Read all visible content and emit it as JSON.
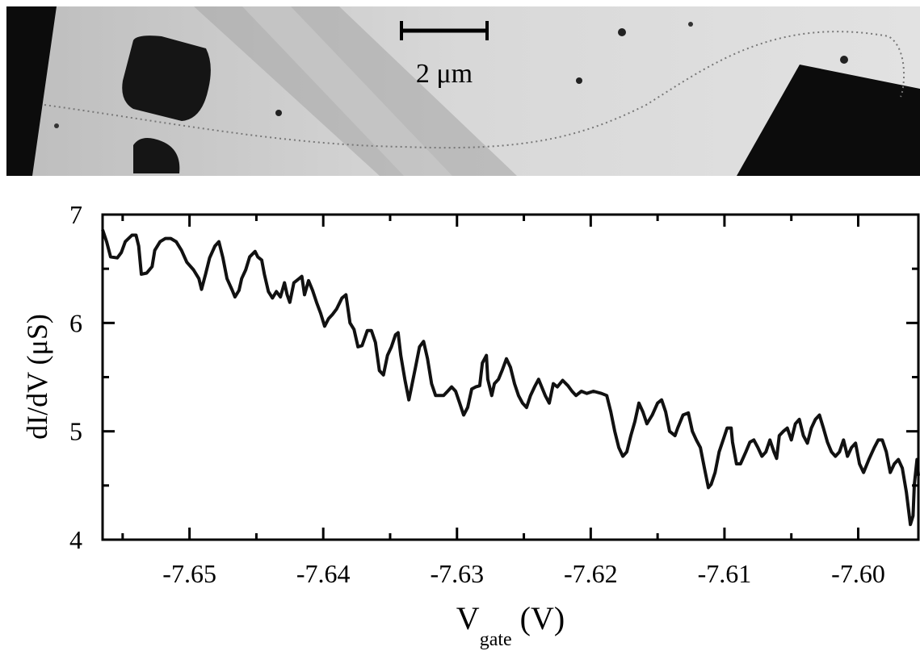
{
  "scale_bar_label": "2 μm",
  "chart_data": {
    "type": "line",
    "xlabel": {
      "main": "V",
      "sub": "gate",
      "unit": "(V)"
    },
    "ylabel": "dI/dV (μS)",
    "color": "#111111",
    "xlim": [
      -7.6565,
      -7.5955
    ],
    "ylim": [
      4,
      7
    ],
    "xticks": [
      -7.65,
      -7.64,
      -7.63,
      -7.62,
      -7.61,
      {
        "value": -7.6,
        "label": "-7.60"
      }
    ],
    "xminorticks": [
      -7.655,
      -7.645,
      -7.635,
      -7.625,
      -7.615,
      -7.605
    ],
    "yticks": [
      4,
      5,
      6,
      7
    ],
    "yminorticks": [
      4.5,
      5.5,
      6.5
    ],
    "x": [
      -7.6565,
      -7.6562,
      -7.6559,
      -7.6554,
      -7.6551,
      -7.6548,
      -7.6543,
      -7.654,
      -7.6538,
      -7.6536,
      -7.6532,
      -7.6528,
      -7.6526,
      -7.6522,
      -7.6518,
      -7.6514,
      -7.651,
      -7.6506,
      -7.6502,
      -7.6497,
      -7.6493,
      -7.6491,
      -7.6488,
      -7.6485,
      -7.6481,
      -7.6478,
      -7.6475,
      -7.6472,
      -7.6468,
      -7.6466,
      -7.6463,
      -7.6461,
      -7.6458,
      -7.6455,
      -7.6451,
      -7.6449,
      -7.6446,
      -7.6444,
      -7.6441,
      -7.6438,
      -7.6435,
      -7.6432,
      -7.6429,
      -7.6427,
      -7.6425,
      -7.6422,
      -7.6418,
      -7.6416,
      -7.6414,
      -7.6411,
      -7.6408,
      -7.6405,
      -7.6402,
      -7.6399,
      -7.6396,
      -7.6393,
      -7.639,
      -7.6386,
      -7.6383,
      -7.638,
      -7.6377,
      -7.6374,
      -7.6371,
      -7.6367,
      -7.6364,
      -7.6361,
      -7.6358,
      -7.6355,
      -7.6352,
      -7.6349,
      -7.6346,
      -7.6344,
      -7.6342,
      -7.6339,
      -7.6336,
      -7.6334,
      -7.6331,
      -7.6328,
      -7.6325,
      -7.6322,
      -7.6319,
      -7.6316,
      -7.6313,
      -7.631,
      -7.6307,
      -7.6304,
      -7.6301,
      -7.6298,
      -7.6295,
      -7.6292,
      -7.6289,
      -7.6286,
      -7.6283,
      -7.6281,
      -7.6278,
      -7.6277,
      -7.6274,
      -7.6272,
      -7.6269,
      -7.6266,
      -7.6263,
      -7.626,
      -7.6257,
      -7.6254,
      -7.6251,
      -7.6248,
      -7.6245,
      -7.6242,
      -7.6239,
      -7.6234,
      -7.6231,
      -7.6228,
      -7.6225,
      -7.6221,
      -7.6217,
      -7.6214,
      -7.6211,
      -7.6207,
      -7.6203,
      -7.6198,
      -7.6192,
      -7.6188,
      -7.6185,
      -7.6182,
      -7.6179,
      -7.6176,
      -7.6173,
      -7.617,
      -7.6167,
      -7.6164,
      -7.6161,
      -7.6158,
      -7.6154,
      -7.615,
      -7.6147,
      -7.6144,
      -7.6141,
      -7.6137,
      -7.6135,
      -7.6131,
      -7.6127,
      -7.6124,
      -7.6121,
      -7.6118,
      -7.6115,
      -7.6112,
      -7.611,
      -7.6107,
      -7.6104,
      -7.6101,
      -7.6098,
      -7.6095,
      -7.6094,
      -7.6091,
      -7.6088,
      -7.6084,
      -7.6081,
      -7.6078,
      -7.6075,
      -7.6072,
      -7.6069,
      -7.6066,
      -7.6063,
      -7.6061,
      -7.6059,
      -7.6056,
      -7.6053,
      -7.605,
      -7.6047,
      -7.6044,
      -7.6041,
      -7.6038,
      -7.6035,
      -7.6032,
      -7.6029,
      -7.6026,
      -7.6023,
      -7.602,
      -7.6017,
      -7.6014,
      -7.6011,
      -7.6008,
      -7.6005,
      -7.6002,
      -7.5999,
      -7.5996,
      -7.5992,
      -7.5988,
      -7.5985,
      -7.5982,
      -7.5979,
      -7.5976,
      -7.5973,
      -7.597,
      -7.5967,
      -7.5964,
      -7.5961,
      -7.5959,
      -7.5958,
      -7.5956,
      -7.5955
    ],
    "values": [
      6.86,
      6.75,
      6.61,
      6.6,
      6.65,
      6.75,
      6.81,
      6.81,
      6.71,
      6.45,
      6.46,
      6.52,
      6.67,
      6.75,
      6.78,
      6.78,
      6.75,
      6.67,
      6.56,
      6.49,
      6.41,
      6.31,
      6.45,
      6.6,
      6.71,
      6.75,
      6.6,
      6.41,
      6.3,
      6.24,
      6.3,
      6.41,
      6.49,
      6.61,
      6.66,
      6.61,
      6.58,
      6.45,
      6.29,
      6.23,
      6.29,
      6.24,
      6.37,
      6.26,
      6.19,
      6.37,
      6.41,
      6.43,
      6.26,
      6.39,
      6.3,
      6.19,
      6.09,
      5.97,
      6.04,
      6.08,
      6.13,
      6.23,
      6.26,
      6.0,
      5.94,
      5.78,
      5.79,
      5.93,
      5.93,
      5.82,
      5.56,
      5.52,
      5.7,
      5.78,
      5.89,
      5.91,
      5.7,
      5.48,
      5.29,
      5.41,
      5.59,
      5.78,
      5.83,
      5.67,
      5.44,
      5.33,
      5.33,
      5.33,
      5.37,
      5.41,
      5.37,
      5.26,
      5.15,
      5.22,
      5.39,
      5.41,
      5.42,
      5.63,
      5.7,
      5.48,
      5.33,
      5.44,
      5.48,
      5.57,
      5.67,
      5.59,
      5.44,
      5.33,
      5.26,
      5.22,
      5.33,
      5.41,
      5.48,
      5.33,
      5.26,
      5.44,
      5.41,
      5.47,
      5.42,
      5.37,
      5.33,
      5.37,
      5.35,
      5.37,
      5.35,
      5.33,
      5.18,
      5.0,
      4.85,
      4.77,
      4.81,
      4.96,
      5.09,
      5.26,
      5.18,
      5.07,
      5.15,
      5.26,
      5.29,
      5.18,
      5.0,
      4.96,
      5.03,
      5.15,
      5.17,
      5.0,
      4.92,
      4.85,
      4.66,
      4.48,
      4.51,
      4.62,
      4.81,
      4.92,
      5.03,
      5.03,
      4.9,
      4.7,
      4.7,
      4.81,
      4.9,
      4.92,
      4.85,
      4.77,
      4.81,
      4.92,
      4.81,
      4.75,
      4.96,
      5.0,
      5.03,
      4.92,
      5.07,
      5.11,
      4.96,
      4.89,
      5.03,
      5.11,
      5.15,
      5.03,
      4.9,
      4.81,
      4.77,
      4.81,
      4.92,
      4.77,
      4.85,
      4.89,
      4.7,
      4.62,
      4.74,
      4.85,
      4.92,
      4.92,
      4.81,
      4.62,
      4.7,
      4.74,
      4.66,
      4.44,
      4.14,
      4.22,
      4.51,
      4.74,
      4.59
    ]
  }
}
